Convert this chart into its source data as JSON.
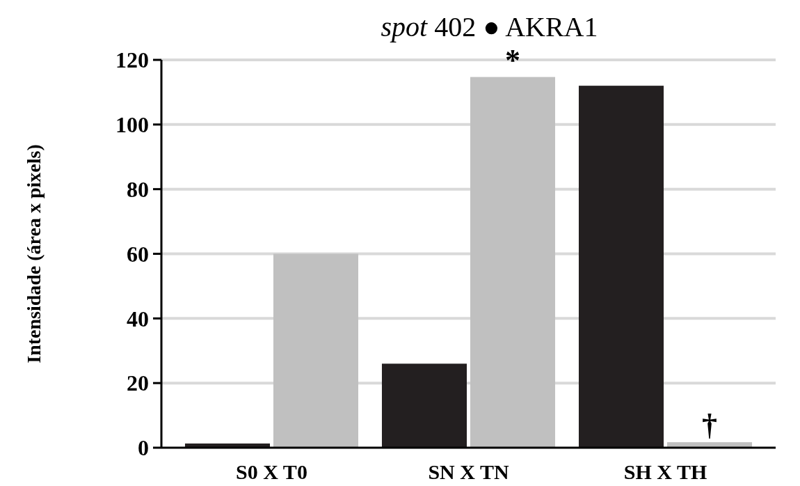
{
  "chart_data": {
    "type": "bar",
    "title": "spot 402 ● AKRA1",
    "ylabel": "Intensidade (área x pixels)",
    "categories": [
      "S0 X T0",
      "SN X TN",
      "SH X TH"
    ],
    "series": [
      {
        "color": "#231f20",
        "values": [
          1.3,
          26,
          112
        ]
      },
      {
        "color": "#c0c0c0",
        "values": [
          60,
          114.7,
          1.7
        ]
      }
    ],
    "ylim": [
      0,
      120
    ],
    "yticks": [
      0,
      20,
      40,
      60,
      80,
      100,
      120
    ],
    "grid": "y",
    "annotations": [
      {
        "text": "*",
        "x": "SN X TN",
        "y": 114.7
      },
      {
        "text": "†",
        "x": "SH X TH",
        "y": 1.7
      }
    ]
  }
}
